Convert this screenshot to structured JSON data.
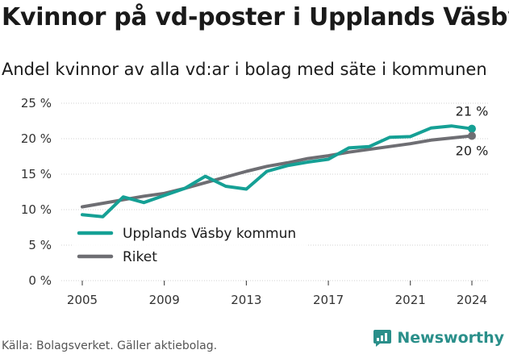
{
  "header": {
    "title": "Kvinnor på vd-poster i Upplands Väsby",
    "subtitle": "Andel kvinnor av alla vd:ar i bolag med säte i kommunen"
  },
  "footer": {
    "source": "Källa: Bolagsverket. Gäller aktiebolag.",
    "brand": "Newsworthy",
    "brand_color": "#2a8f8a"
  },
  "chart_data": {
    "type": "line",
    "x": [
      2005,
      2006,
      2007,
      2008,
      2009,
      2010,
      2011,
      2012,
      2013,
      2014,
      2015,
      2016,
      2017,
      2018,
      2019,
      2020,
      2021,
      2022,
      2023,
      2024
    ],
    "xticks": [
      2005,
      2009,
      2013,
      2017,
      2021,
      2024
    ],
    "yticks": [
      0,
      5,
      10,
      15,
      20,
      25
    ],
    "ytick_labels": [
      "0 %",
      "5 %",
      "10 %",
      "15 %",
      "20 %",
      "25 %"
    ],
    "ylim": [
      0,
      25
    ],
    "xlim": [
      2005,
      2024
    ],
    "grid": true,
    "legend_position": "lower-left",
    "series": [
      {
        "name": "Upplands Väsby kommun",
        "color": "#15a095",
        "values": [
          9.3,
          9.0,
          11.8,
          11.0,
          12.0,
          13.0,
          14.7,
          13.3,
          12.9,
          15.4,
          16.2,
          16.7,
          17.1,
          18.7,
          18.9,
          20.2,
          20.3,
          21.5,
          21.8,
          21.4
        ],
        "end_label": "21 %"
      },
      {
        "name": "Riket",
        "color": "#6e6e73",
        "values": [
          10.4,
          10.9,
          11.4,
          11.9,
          12.3,
          13.0,
          13.8,
          14.6,
          15.4,
          16.1,
          16.6,
          17.2,
          17.6,
          18.1,
          18.5,
          18.9,
          19.3,
          19.8,
          20.1,
          20.4
        ],
        "end_label": "20 %"
      }
    ]
  }
}
